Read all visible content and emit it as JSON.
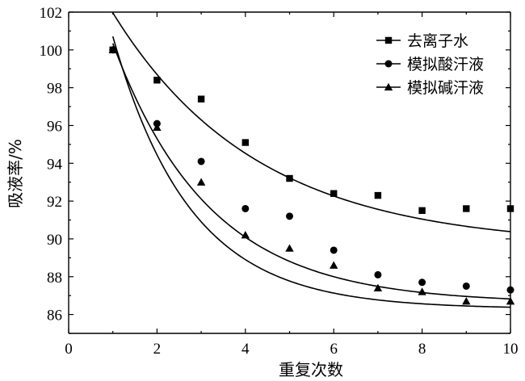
{
  "chart_data": {
    "type": "scatter",
    "title": "",
    "xlabel": "重复次数",
    "ylabel": "吸液率/%",
    "xlim": [
      0,
      10
    ],
    "ylim": [
      85,
      102
    ],
    "x_ticks": [
      0,
      2,
      4,
      6,
      8,
      10
    ],
    "y_ticks": [
      86,
      88,
      90,
      92,
      94,
      96,
      98,
      100,
      102
    ],
    "grid": false,
    "legend_position": "top-right",
    "series": [
      {
        "name": "去离子水",
        "marker": "square",
        "x": [
          1,
          2,
          3,
          4,
          5,
          6,
          7,
          8,
          9,
          10
        ],
        "y": [
          100.0,
          98.4,
          97.4,
          95.1,
          93.2,
          92.4,
          92.3,
          91.5,
          91.6,
          91.6
        ],
        "fit": {
          "y_inf": 89.6,
          "amplitude": 16.8,
          "k": 0.3066
        }
      },
      {
        "name": "模拟酸汗液",
        "marker": "circle",
        "x": [
          1,
          2,
          3,
          4,
          5,
          6,
          7,
          8,
          9,
          10
        ],
        "y": [
          100.0,
          96.1,
          94.1,
          91.6,
          91.2,
          89.4,
          88.1,
          87.7,
          87.5,
          87.3
        ],
        "fit": {
          "y_inf": 86.6,
          "amplitude": 21.7,
          "k": 0.4568
        }
      },
      {
        "name": "模拟碱汗液",
        "marker": "triangle",
        "x": [
          1,
          2,
          3,
          4,
          5,
          6,
          7,
          8,
          9,
          10
        ],
        "y": [
          100.0,
          95.9,
          93.0,
          90.2,
          89.5,
          88.6,
          87.4,
          87.2,
          86.7,
          86.7
        ],
        "fit": {
          "y_inf": 86.3,
          "amplitude": 25.5,
          "k": 0.5705
        }
      }
    ]
  }
}
